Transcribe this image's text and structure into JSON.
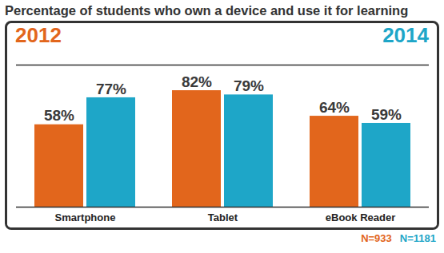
{
  "chart_data": {
    "type": "bar",
    "title": "Percentage of students who own a device and use it for learning",
    "categories": [
      "Smartphone",
      "Tablet",
      "eBook Reader"
    ],
    "series": [
      {
        "name": "2012",
        "color": "#e2661c",
        "values": [
          58,
          82,
          64
        ],
        "value_labels": [
          "58%",
          "82%",
          "64%"
        ]
      },
      {
        "name": "2014",
        "color": "#1ea6c8",
        "values": [
          77,
          79,
          59
        ],
        "value_labels": [
          "77%",
          "79%",
          "59%"
        ]
      }
    ],
    "ylim": [
      0,
      100
    ],
    "yticks": [],
    "tick_labels": "x",
    "data_labels": true,
    "legend": "top",
    "annotations": [
      {
        "text": "N=933",
        "color": "#e2661c"
      },
      {
        "text": "N=1181",
        "color": "#1ea6c8"
      }
    ]
  }
}
